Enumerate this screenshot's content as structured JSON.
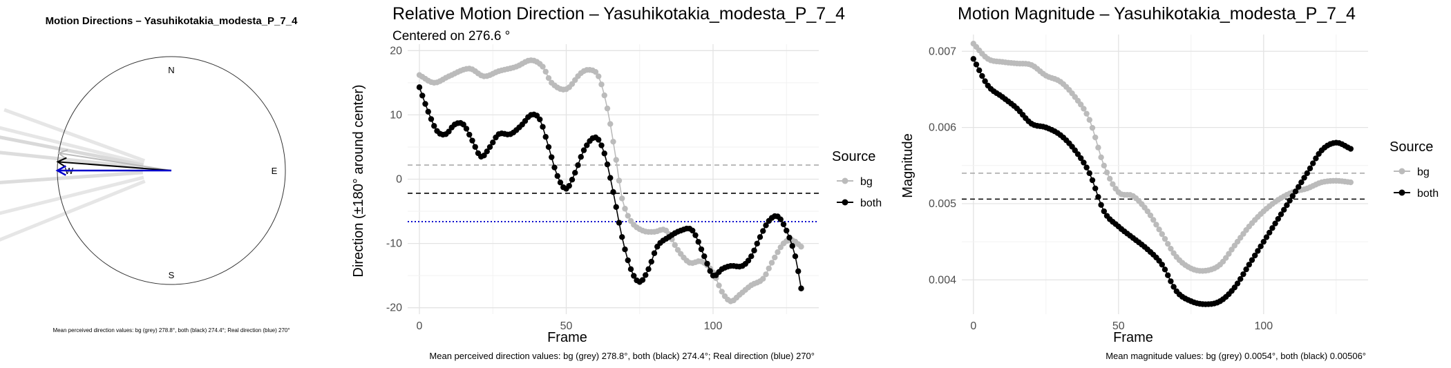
{
  "chart_data": [
    {
      "type": "compass",
      "title": "Motion Directions – Yasuhikotakia_modesta_P_7_4",
      "labels": [
        "N",
        "E",
        "S",
        "W"
      ],
      "caption": "Mean perceived direction values: bg (grey) 278.8°, both (black) 274.4°; Real direction (blue) 270°",
      "arrows": [
        {
          "name": "bg",
          "angle": 278.8,
          "color": "#bbbbbb"
        },
        {
          "name": "both",
          "angle": 274.4,
          "color": "#000000"
        },
        {
          "name": "real",
          "angle": 270,
          "color": "#0000cc"
        }
      ],
      "spokes": [
        {
          "angle": 290,
          "len": 0.56,
          "color": "#e6e6e6"
        },
        {
          "angle": 284,
          "len": 0.76,
          "color": "#e6e6e6"
        },
        {
          "angle": 281,
          "len": 0.73,
          "color": "#d9d9d9"
        },
        {
          "angle": 276,
          "len": 0.8,
          "color": "#dddddd"
        },
        {
          "angle": 266,
          "len": 0.8,
          "color": "#dddddd"
        },
        {
          "angle": 256,
          "len": 0.78,
          "color": "#e6e6e6"
        },
        {
          "angle": 248,
          "len": 0.73,
          "color": "#e6e6e6"
        }
      ]
    },
    {
      "type": "line",
      "title": "Relative Motion Direction – Yasuhikotakia_modesta_P_7_4",
      "subtitle": "Centered on  276.6 °",
      "xlabel": "Frame",
      "ylabel": "Direction (±180° around center)",
      "xlim": [
        -4,
        136
      ],
      "ylim": [
        -21,
        21
      ],
      "xticks": [
        0,
        50,
        100
      ],
      "yticks": [
        -20,
        -10,
        0,
        10,
        20
      ],
      "legend_title": "Source",
      "legend": [
        "bg",
        "both"
      ],
      "caption": "Mean perceived direction values: bg (grey) 278.8°, both (black) 274.4°; Real direction (blue) 270°",
      "hlines": [
        {
          "y": 2.2,
          "color": "#aaaaaa",
          "style": "dashed"
        },
        {
          "y": -2.2,
          "color": "#000000",
          "style": "dashed"
        },
        {
          "y": -6.6,
          "color": "#0000cc",
          "style": "dotted"
        }
      ],
      "series": [
        {
          "name": "bg",
          "color": "#bbbbbb",
          "knots": [
            [
              0,
              16.2
            ],
            [
              5,
              15
            ],
            [
              10,
              16
            ],
            [
              17,
              17.2
            ],
            [
              22,
              16
            ],
            [
              27,
              16.8
            ],
            [
              33,
              17.5
            ],
            [
              38,
              18.5
            ],
            [
              42,
              17.5
            ],
            [
              45,
              15
            ],
            [
              50,
              14
            ],
            [
              55,
              16.5
            ],
            [
              58,
              17
            ],
            [
              61,
              16
            ],
            [
              64,
              11
            ],
            [
              67,
              3
            ],
            [
              69,
              -3
            ],
            [
              72,
              -6.5
            ],
            [
              76,
              -8
            ],
            [
              80,
              -8.2
            ],
            [
              84,
              -8
            ],
            [
              88,
              -11
            ],
            [
              92,
              -13
            ],
            [
              96,
              -12.8
            ],
            [
              100,
              -14.5
            ],
            [
              103,
              -17.5
            ],
            [
              106,
              -19
            ],
            [
              109,
              -18
            ],
            [
              113,
              -16.5
            ],
            [
              117,
              -15.5
            ],
            [
              120,
              -13
            ],
            [
              124,
              -10
            ],
            [
              127,
              -9.5
            ],
            [
              130,
              -10.5
            ]
          ]
        },
        {
          "name": "both",
          "color": "#000000",
          "knots": [
            [
              0,
              14.3
            ],
            [
              3,
              10.5
            ],
            [
              6,
              7.5
            ],
            [
              9,
              7
            ],
            [
              12,
              8.5
            ],
            [
              15,
              8.5
            ],
            [
              18,
              6
            ],
            [
              21,
              3.5
            ],
            [
              24,
              5
            ],
            [
              27,
              7
            ],
            [
              31,
              7
            ],
            [
              35,
              8.5
            ],
            [
              38,
              10
            ],
            [
              41,
              9.3
            ],
            [
              44,
              5
            ],
            [
              47,
              0.5
            ],
            [
              50,
              -1.5
            ],
            [
              53,
              1
            ],
            [
              56,
              4.5
            ],
            [
              60,
              6.5
            ],
            [
              63,
              4
            ],
            [
              66,
              -2
            ],
            [
              69,
              -9
            ],
            [
              72,
              -14
            ],
            [
              75,
              -16
            ],
            [
              78,
              -14
            ],
            [
              81,
              -10.5
            ],
            [
              85,
              -9
            ],
            [
              89,
              -8
            ],
            [
              93,
              -8
            ],
            [
              97,
              -12
            ],
            [
              100,
              -15
            ],
            [
              103,
              -14
            ],
            [
              106,
              -13.5
            ],
            [
              110,
              -13.5
            ],
            [
              113,
              -12
            ],
            [
              116,
              -9
            ],
            [
              119,
              -6.5
            ],
            [
              122,
              -5.8
            ],
            [
              125,
              -8
            ],
            [
              128,
              -12
            ],
            [
              130,
              -17
            ]
          ]
        }
      ]
    },
    {
      "type": "line",
      "title": "Motion Magnitude – Yasuhikotakia_modesta_P_7_4",
      "xlabel": "Frame",
      "ylabel": "Magnitude",
      "xlim": [
        -4,
        136
      ],
      "ylim": [
        0.00355,
        0.00722
      ],
      "xticks": [
        0,
        50,
        100
      ],
      "yticks": [
        0.004,
        0.005,
        0.006,
        0.007
      ],
      "ytick_labels": [
        "0.004",
        "0.005",
        "0.006",
        "0.007"
      ],
      "legend_title": "Source",
      "legend": [
        "bg",
        "both"
      ],
      "caption": "Mean magnitude values: bg (grey) 0.0054°, both (black) 0.00506°",
      "hlines": [
        {
          "y": 0.0054,
          "color": "#aaaaaa",
          "style": "dashed"
        },
        {
          "y": 0.00506,
          "color": "#000000",
          "style": "dashed"
        }
      ],
      "series": [
        {
          "name": "bg",
          "color": "#bbbbbb",
          "knots": [
            [
              0,
              0.0071
            ],
            [
              5,
              0.0069
            ],
            [
              10,
              0.00686
            ],
            [
              15,
              0.00684
            ],
            [
              20,
              0.00682
            ],
            [
              25,
              0.00668
            ],
            [
              30,
              0.0066
            ],
            [
              35,
              0.0064
            ],
            [
              40,
              0.0061
            ],
            [
              45,
              0.0055
            ],
            [
              50,
              0.00515
            ],
            [
              55,
              0.0051
            ],
            [
              60,
              0.0049
            ],
            [
              65,
              0.0046
            ],
            [
              70,
              0.0043
            ],
            [
              75,
              0.00415
            ],
            [
              80,
              0.00412
            ],
            [
              85,
              0.0042
            ],
            [
              90,
              0.00445
            ],
            [
              95,
              0.0047
            ],
            [
              100,
              0.0049
            ],
            [
              105,
              0.00505
            ],
            [
              110,
              0.00515
            ],
            [
              115,
              0.0052
            ],
            [
              120,
              0.00528
            ],
            [
              125,
              0.0053
            ],
            [
              130,
              0.00528
            ]
          ]
        },
        {
          "name": "both",
          "color": "#000000",
          "knots": [
            [
              0,
              0.0069
            ],
            [
              5,
              0.00655
            ],
            [
              10,
              0.0064
            ],
            [
              15,
              0.00625
            ],
            [
              20,
              0.00605
            ],
            [
              25,
              0.006
            ],
            [
              30,
              0.0059
            ],
            [
              35,
              0.0057
            ],
            [
              40,
              0.0054
            ],
            [
              45,
              0.0049
            ],
            [
              50,
              0.0047
            ],
            [
              55,
              0.00455
            ],
            [
              60,
              0.0044
            ],
            [
              65,
              0.0042
            ],
            [
              70,
              0.00385
            ],
            [
              75,
              0.00372
            ],
            [
              80,
              0.00368
            ],
            [
              85,
              0.00372
            ],
            [
              90,
              0.0039
            ],
            [
              95,
              0.0042
            ],
            [
              100,
              0.0045
            ],
            [
              105,
              0.0048
            ],
            [
              110,
              0.0051
            ],
            [
              115,
              0.0054
            ],
            [
              120,
              0.0057
            ],
            [
              125,
              0.0058
            ],
            [
              130,
              0.00572
            ]
          ]
        }
      ]
    }
  ]
}
